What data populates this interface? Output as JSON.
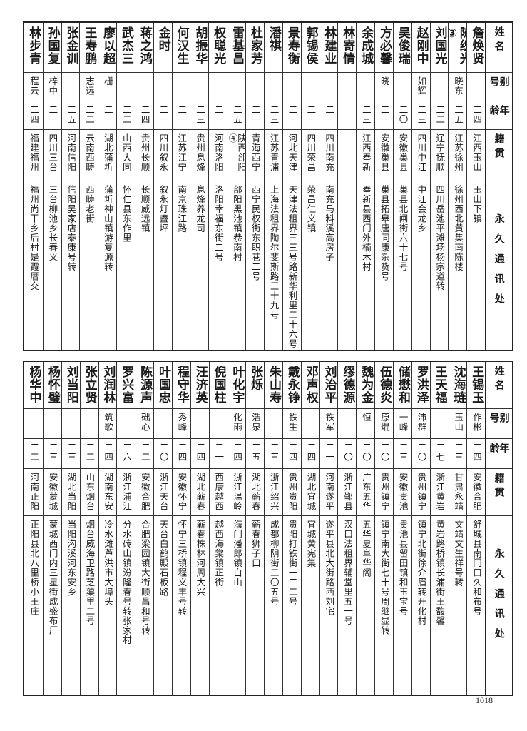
{
  "headers": {
    "name": "姓名",
    "alias": "别号",
    "age": "年龄",
    "native": "籍贯",
    "address": "永久通讯处"
  },
  "top_rows": [
    {
      "name": "詹焕贤",
      "alias": "",
      "age": "二四",
      "native": "江西玉山",
      "address": "玉山下镇"
    },
    {
      "name": "陈织光③",
      "alias": "晓东",
      "age": "二五",
      "native": "江苏徐州",
      "address": "徐州西北黄集南陈楼"
    },
    {
      "name": "刘国光",
      "alias": "",
      "age": "二二",
      "native": "辽宁抚顺",
      "address": "四川岳池平滩场杨宗道转"
    },
    {
      "name": "赵刚中",
      "alias": "如辉",
      "age": "二三",
      "native": "四川中江",
      "address": "中江会龙乡"
    },
    {
      "name": "吴俊瑞",
      "alias": "",
      "age": "二〇",
      "native": "安徽巢县",
      "address": "巢县北闸街六十七号"
    },
    {
      "name": "方必馨",
      "alias": "晓",
      "age": "二一",
      "native": "安徽巢县",
      "address": "巢县拓皋唐同康杂货号"
    },
    {
      "name": "余成城",
      "alias": "",
      "age": "二三",
      "native": "江西奉新",
      "address": "奉新县西门外楠木村"
    },
    {
      "name": "林寄情",
      "alias": "",
      "age": "",
      "native": "",
      "address": ""
    },
    {
      "name": "林建业",
      "alias": "",
      "age": "二一",
      "native": "四川南充",
      "address": "南充马料溪高房子"
    },
    {
      "name": "郭锡侯",
      "alias": "",
      "age": "二一",
      "native": "四川荣昌",
      "address": "荣昌仁义镇"
    },
    {
      "name": "景寿衡",
      "alias": "",
      "age": "二一",
      "native": "河北天津",
      "address": "天津法租界三三号路新华利里二十六号"
    },
    {
      "name": "潘祺",
      "alias": "",
      "age": "二三",
      "native": "江苏青浦",
      "address": "上海法租界陶尔斐斯路三十九号"
    },
    {
      "name": "杜家芳",
      "alias": "",
      "age": "二一",
      "native": "青海西宁",
      "address": "西宁民权街东职巷二号"
    },
    {
      "name": "雷基昌",
      "alias": "",
      "age": "二五",
      "native": "陕西郃阳④",
      "address": "郃阳黑池镇恭南村"
    },
    {
      "name": "权聪光",
      "alias": "",
      "age": "二一",
      "native": "河南洛阳",
      "address": "洛阳幸福东街二号"
    },
    {
      "name": "胡振华",
      "alias": "",
      "age": "二三",
      "native": "贵州息烽",
      "address": "息烽养龙司"
    },
    {
      "name": "何汉生",
      "alias": "",
      "age": "二一",
      "native": "江苏江宁",
      "address": "南京珠江路"
    },
    {
      "name": "金时",
      "alias": "",
      "age": "二一",
      "native": "四川叙永",
      "address": "叙永灯盏坪"
    },
    {
      "name": "蒋之鸿",
      "alias": "",
      "age": "二四",
      "native": "贵州长顺",
      "address": "长顺威远镇"
    },
    {
      "name": "武杰三",
      "alias": "",
      "age": "二二",
      "native": "山西大同",
      "address": "怀仁县东作里"
    },
    {
      "name": "廖以超",
      "alias": "栅",
      "age": "二一",
      "native": "湖北蒲圻",
      "address": "蒲圻神山镇游复源转"
    },
    {
      "name": "王寿鹏",
      "alias": "志远",
      "age": "二二",
      "native": "云南西畴",
      "address": "西畴老街"
    },
    {
      "name": "张金训",
      "alias": "",
      "age": "二五",
      "native": "河南信阳",
      "address": "信阳吴家店泰康号转"
    },
    {
      "name": "孙国复",
      "alias": "梓中",
      "age": "二一",
      "native": "四川三台",
      "address": "三台柳池乡长春义"
    },
    {
      "name": "林步青",
      "alias": "程云",
      "age": "二四",
      "native": "福建福州",
      "address": "福州尚干乡后村是霞厝交"
    }
  ],
  "bottom_rows": [
    {
      "name": "王锡玉",
      "alias": "作彬",
      "age": "二四",
      "native": "安徽合肥",
      "address": "舒城县南门口久和布号"
    },
    {
      "name": "沈海琏",
      "alias": "玉山",
      "age": "二三",
      "native": "甘肃永靖",
      "address": "文靖文生祥号转"
    },
    {
      "name": "王天福",
      "alias": "",
      "age": "二七",
      "native": "浙江黄岩",
      "address": "黄岩路桥镇长浦街王馥馨"
    },
    {
      "name": "罗洪泽",
      "alias": "沛群",
      "age": "二〇",
      "native": "贵州镇宁",
      "address": "镇宁北街徐介眉转开化村"
    },
    {
      "name": "储懋和",
      "alias": "一峰",
      "age": "二三",
      "native": "安徽贵池",
      "address": "贵池县留田镇和玉宝号"
    },
    {
      "name": "伍德炎",
      "alias": "原焜",
      "age": "二〇",
      "native": "贵州镇宁",
      "address": "镇宁南大街七十号周继显转"
    },
    {
      "name": "魏为金",
      "alias": "恒",
      "age": "二〇",
      "native": "广东五华",
      "address": "五华夏阜华阁"
    },
    {
      "name": "缪德源",
      "alias": "",
      "age": "二〇",
      "native": "浙江鄞县",
      "address": "汉口法租界辅堂里五一号"
    },
    {
      "name": "刘治平",
      "alias": "铁军",
      "age": "二一",
      "native": "河南遂平",
      "address": "遂平县北大街路西刘宅"
    },
    {
      "name": "邓声权",
      "alias": "",
      "age": "二四",
      "native": "湖北宜城",
      "address": "宜城黄宪集"
    },
    {
      "name": "戴永铮",
      "alias": "铁生",
      "age": "二四",
      "native": "贵州贵阳",
      "address": "贵阳打铁街一二二号"
    },
    {
      "name": "朱山寿",
      "alias": "",
      "age": "二三",
      "native": "浙江绍兴",
      "address": "成都柳阴街二〇五号"
    },
    {
      "name": "张烁",
      "alias": "浩泉",
      "age": "二五",
      "native": "湖北蕲春",
      "address": "蕲春狮子口"
    },
    {
      "name": "叶化宇",
      "alias": "化雨",
      "age": "二四",
      "native": "浙江温岭",
      "address": "海门潘郎镇白山"
    },
    {
      "name": "倪国柱",
      "alias": "",
      "age": "二一",
      "native": "西康越西",
      "address": "越西海棠镇正街"
    },
    {
      "name": "汪济英",
      "alias": "",
      "age": "二四",
      "native": "湖北蕲春",
      "address": "蕲春株林河周大兴"
    },
    {
      "name": "程守华",
      "alias": "秀峰",
      "age": "二四",
      "native": "安徽怀宁",
      "address": "怀宁三桥镇程义丰号转"
    },
    {
      "name": "叶国忠",
      "alias": "",
      "age": "二〇",
      "native": "浙江天台",
      "address": "天台白鹤殿石板路"
    },
    {
      "name": "陈源声",
      "alias": "础心",
      "age": "二二",
      "native": "安徽合肥",
      "address": "合肥梁园镇大街顺昌和号转"
    },
    {
      "name": "罗兴富",
      "alias": "",
      "age": "二六",
      "native": "浙江浦江",
      "address": "分水砖山镇汾隆春号转张家村"
    },
    {
      "name": "刘润林",
      "alias": "筑歌",
      "age": "二四",
      "native": "湖南东安",
      "address": "冷水滩芦洪市大埠头"
    },
    {
      "name": "张立贤",
      "alias": "",
      "age": "二二",
      "native": "山东烟台",
      "address": "烟台威海卫路芝蕖里二号"
    },
    {
      "name": "刘当阳",
      "alias": "",
      "age": "二三",
      "native": "湖北当阳",
      "address": "当阳沟溪河东安乡"
    },
    {
      "name": "杨怀璧",
      "alias": "",
      "age": "二三",
      "native": "安徽蒙城",
      "address": "蒙城西门内三星街成盛布厂"
    },
    {
      "name": "杨华中",
      "alias": "",
      "age": "二二",
      "native": "河南正阳",
      "address": "正阳县北八里桥小王庄"
    }
  ],
  "page_number": "1018"
}
